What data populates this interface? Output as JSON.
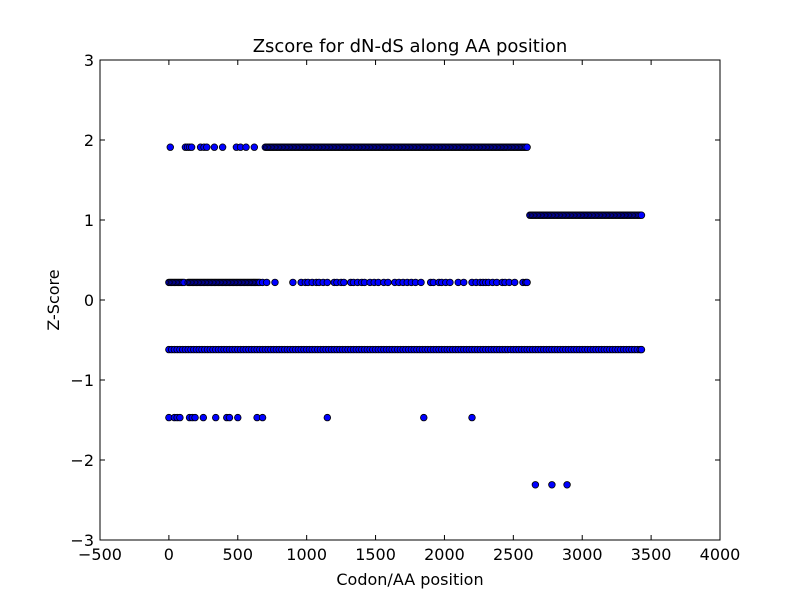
{
  "chart_data": {
    "type": "scatter",
    "title": "Zscore for dN-dS along AA position",
    "xlabel": "Codon/AA position",
    "ylabel": "Z-Score",
    "xlim": [
      -500,
      4000
    ],
    "ylim": [
      -3,
      3
    ],
    "xticks": [
      -500,
      0,
      500,
      1000,
      1500,
      2000,
      2500,
      3000,
      3500,
      4000
    ],
    "yticks": [
      -3,
      -2,
      -1,
      0,
      1,
      2,
      3
    ],
    "xtick_labels": [
      "−500",
      "0",
      "500",
      "1000",
      "1500",
      "2000",
      "2500",
      "3000",
      "3500",
      "4000"
    ],
    "ytick_labels": [
      "−3",
      "−2",
      "−1",
      "0",
      "1",
      "2",
      "3"
    ],
    "grid": false,
    "legend": "none",
    "marker_color": "#0000ff",
    "marker_edge_color": "#000000",
    "series": [
      {
        "y": 1.91,
        "x": [
          10,
          120,
          135,
          150,
          165,
          230,
          255,
          275,
          330,
          390,
          490,
          520,
          560,
          620,
          700,
          710,
          720,
          730,
          740,
          750,
          760,
          770,
          780,
          790,
          800,
          810,
          820,
          830,
          840,
          850,
          860,
          870,
          880,
          890,
          900,
          910,
          920,
          930,
          940,
          950,
          960,
          970,
          980,
          990,
          1000,
          1010,
          1020,
          1030,
          1040,
          1050,
          1060,
          1070,
          1080,
          1090,
          1100,
          1110,
          1120,
          1130,
          1140,
          1150,
          1160,
          1170,
          1180,
          1190,
          1200,
          1210,
          1220,
          1230,
          1240,
          1250,
          1260,
          1270,
          1280,
          1290,
          1300,
          1310,
          1320,
          1330,
          1340,
          1350,
          1360,
          1370,
          1380,
          1390,
          1400,
          1410,
          1420,
          1430,
          1440,
          1450,
          1460,
          1470,
          1480,
          1490,
          1500,
          1510,
          1520,
          1530,
          1540,
          1550,
          1560,
          1570,
          1580,
          1590,
          1600,
          1610,
          1620,
          1630,
          1640,
          1650,
          1660,
          1670,
          1680,
          1690,
          1700,
          1710,
          1720,
          1730,
          1740,
          1750,
          1760,
          1770,
          1780,
          1790,
          1800,
          1810,
          1820,
          1830,
          1840,
          1850,
          1860,
          1870,
          1880,
          1890,
          1900,
          1910,
          1920,
          1930,
          1940,
          1950,
          1960,
          1970,
          1980,
          1990,
          2000,
          2010,
          2020,
          2030,
          2040,
          2050,
          2060,
          2070,
          2080,
          2090,
          2100,
          2110,
          2120,
          2130,
          2140,
          2150,
          2160,
          2170,
          2180,
          2190,
          2200,
          2210,
          2220,
          2230,
          2240,
          2250,
          2260,
          2270,
          2280,
          2290,
          2300,
          2310,
          2320,
          2330,
          2340,
          2350,
          2360,
          2370,
          2380,
          2390,
          2400,
          2410,
          2420,
          2430,
          2440,
          2450,
          2460,
          2470,
          2480,
          2490,
          2500,
          2510,
          2520,
          2530,
          2540,
          2550,
          2560,
          2570,
          2580,
          2590,
          2600
        ]
      },
      {
        "y": 1.06,
        "x": [
          2620,
          2630,
          2640,
          2650,
          2660,
          2670,
          2680,
          2690,
          2700,
          2710,
          2720,
          2730,
          2740,
          2750,
          2760,
          2770,
          2780,
          2790,
          2800,
          2810,
          2820,
          2830,
          2840,
          2850,
          2860,
          2870,
          2880,
          2890,
          2900,
          2910,
          2920,
          2930,
          2940,
          2950,
          2960,
          2970,
          2980,
          2990,
          3000,
          3010,
          3020,
          3030,
          3040,
          3050,
          3060,
          3070,
          3080,
          3090,
          3100,
          3110,
          3120,
          3130,
          3140,
          3150,
          3160,
          3170,
          3180,
          3190,
          3200,
          3210,
          3220,
          3230,
          3240,
          3250,
          3260,
          3270,
          3280,
          3290,
          3300,
          3310,
          3320,
          3330,
          3340,
          3350,
          3360,
          3370,
          3380,
          3390,
          3400,
          3410,
          3420,
          3430
        ]
      },
      {
        "y": 0.22,
        "x": [
          0,
          10,
          20,
          30,
          40,
          50,
          60,
          70,
          80,
          90,
          100,
          110,
          140,
          150,
          160,
          170,
          180,
          190,
          200,
          210,
          220,
          230,
          240,
          250,
          260,
          270,
          280,
          290,
          300,
          310,
          320,
          330,
          340,
          350,
          360,
          370,
          380,
          390,
          400,
          410,
          420,
          430,
          440,
          450,
          460,
          470,
          480,
          490,
          500,
          510,
          520,
          530,
          540,
          550,
          560,
          570,
          580,
          590,
          600,
          610,
          620,
          630,
          640,
          650,
          660,
          680,
          710,
          770,
          900,
          960,
          990,
          1010,
          1040,
          1070,
          1090,
          1120,
          1150,
          1200,
          1220,
          1250,
          1270,
          1320,
          1340,
          1370,
          1400,
          1420,
          1460,
          1490,
          1520,
          1560,
          1590,
          1640,
          1670,
          1700,
          1730,
          1760,
          1790,
          1830,
          1900,
          1920,
          1960,
          1980,
          2010,
          2040,
          2100,
          2140,
          2200,
          2230,
          2260,
          2280,
          2300,
          2320,
          2350,
          2380,
          2420,
          2440,
          2470,
          2510,
          2570,
          2590,
          2600
        ]
      },
      {
        "y": -0.62,
        "x": [
          0,
          20,
          40,
          60,
          80,
          100,
          120,
          140,
          160,
          180,
          200,
          220,
          240,
          260,
          280,
          300,
          320,
          340,
          360,
          380,
          400,
          420,
          440,
          460,
          480,
          500,
          520,
          540,
          560,
          580,
          600,
          620,
          640,
          660,
          680,
          700,
          720,
          740,
          760,
          780,
          800,
          820,
          840,
          860,
          880,
          900,
          920,
          940,
          960,
          980,
          1000,
          1020,
          1040,
          1060,
          1080,
          1100,
          1120,
          1140,
          1160,
          1180,
          1200,
          1220,
          1240,
          1260,
          1280,
          1300,
          1320,
          1340,
          1360,
          1380,
          1400,
          1420,
          1440,
          1460,
          1480,
          1500,
          1520,
          1540,
          1560,
          1580,
          1600,
          1620,
          1640,
          1660,
          1680,
          1700,
          1720,
          1740,
          1760,
          1780,
          1800,
          1820,
          1840,
          1860,
          1880,
          1900,
          1920,
          1940,
          1960,
          1980,
          2000,
          2020,
          2040,
          2060,
          2080,
          2100,
          2120,
          2140,
          2160,
          2180,
          2200,
          2220,
          2240,
          2260,
          2280,
          2300,
          2320,
          2340,
          2360,
          2380,
          2400,
          2420,
          2440,
          2460,
          2480,
          2500,
          2520,
          2540,
          2560,
          2580,
          2600,
          2620,
          2640,
          2660,
          2680,
          2700,
          2720,
          2740,
          2760,
          2780,
          2800,
          2820,
          2840,
          2860,
          2880,
          2900,
          2920,
          2940,
          2960,
          2980,
          3000,
          3020,
          3040,
          3060,
          3080,
          3100,
          3120,
          3140,
          3160,
          3180,
          3200,
          3220,
          3240,
          3260,
          3280,
          3300,
          3320,
          3340,
          3360,
          3380,
          3400,
          3420,
          3430
        ]
      },
      {
        "y": -1.47,
        "x": [
          0,
          40,
          60,
          80,
          150,
          170,
          190,
          250,
          340,
          420,
          440,
          500,
          640,
          680,
          1150,
          1850,
          2200
        ]
      },
      {
        "y": -2.31,
        "x": [
          2660,
          2780,
          2890
        ]
      }
    ]
  }
}
